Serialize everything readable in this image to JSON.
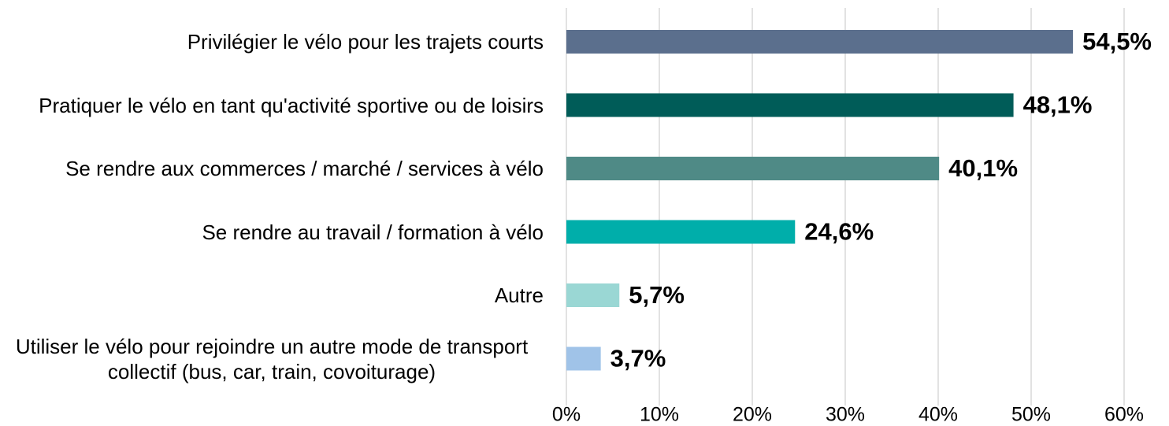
{
  "chart_data": {
    "type": "barh",
    "categories": [
      "Privilégier le vélo pour les trajets courts",
      "Pratiquer le vélo en tant qu'activité sportive ou de loisirs",
      "Se rendre aux commerces / marché / services à vélo",
      "Se rendre au travail / formation à vélo",
      "Autre",
      "Utiliser le vélo pour rejoindre un autre mode de transport collectif (bus, car, train, covoiturage)"
    ],
    "values": [
      54.5,
      48.1,
      40.1,
      24.6,
      5.7,
      3.7
    ],
    "value_labels": [
      "54,5%",
      "48,1%",
      "40,1%",
      "24,6%",
      "5,7%",
      "3,7%"
    ],
    "colors": [
      "#5b6f8d",
      "#005c58",
      "#4f8a86",
      "#00aeaa",
      "#9ad7d4",
      "#a0c3e8"
    ],
    "xlim": [
      0,
      60
    ],
    "xticks": [
      {
        "value": 0,
        "label": "0%"
      },
      {
        "value": 10,
        "label": "10%"
      },
      {
        "value": 20,
        "label": "20%"
      },
      {
        "value": 30,
        "label": "30%"
      },
      {
        "value": 40,
        "label": "40%"
      },
      {
        "value": 50,
        "label": "50%"
      },
      {
        "value": 60,
        "label": "60%"
      }
    ],
    "grid": true
  }
}
